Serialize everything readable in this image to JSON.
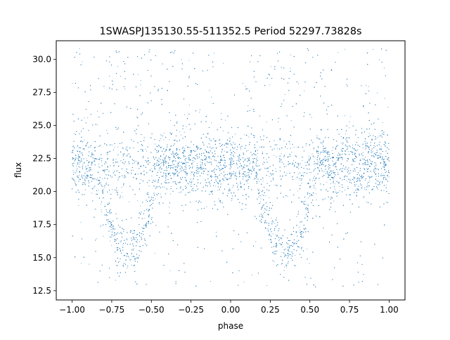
{
  "chart_data": {
    "type": "scatter",
    "title": "1SWASPJ135130.55-511352.5 Period 52297.73828s",
    "xlabel": "phase",
    "ylabel": "flux",
    "xlim": [
      -1.1,
      1.1
    ],
    "ylim": [
      11.8,
      31.4
    ],
    "x_ticks": [
      -1.0,
      -0.75,
      -0.5,
      -0.25,
      0.0,
      0.25,
      0.5,
      0.75,
      1.0
    ],
    "x_tick_labels": [
      "−1.00",
      "−0.75",
      "−0.50",
      "−0.25",
      "0.00",
      "0.25",
      "0.50",
      "0.75",
      "1.00"
    ],
    "y_ticks": [
      12.5,
      15.0,
      17.5,
      20.0,
      22.5,
      25.0,
      27.5,
      30.0
    ],
    "y_tick_labels": [
      "12.5",
      "15.0",
      "17.5",
      "20.0",
      "22.5",
      "25.0",
      "27.5",
      "30.0"
    ],
    "grid": false,
    "legend": "none",
    "point_color": "#1f77b4",
    "description_of_distribution": {
      "phase_range": [
        -1.0,
        1.0
      ],
      "baseline_flux": 22.0,
      "baseline_spread": 1.2,
      "eclipse_centers_phase": [
        -0.65,
        0.35
      ],
      "eclipse_min_flux": 15.5,
      "flux_range": [
        12.7,
        30.8
      ]
    }
  }
}
